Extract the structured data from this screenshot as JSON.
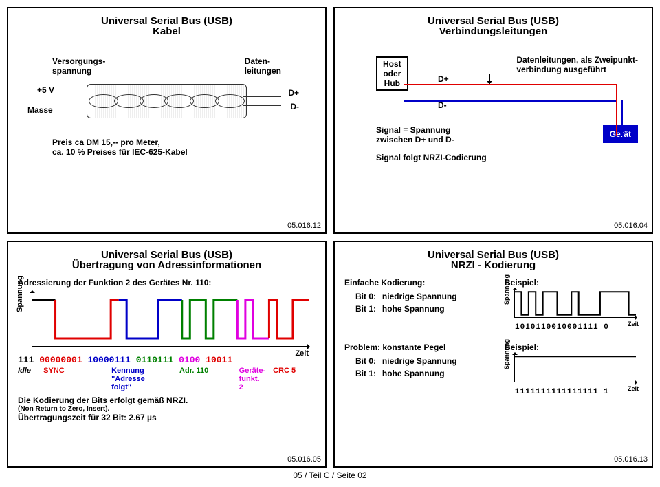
{
  "footer": "05 / Teil C / Seite 02",
  "p1": {
    "title": "Universal Serial Bus (USB)",
    "subtitle": "Kabel",
    "lbl_supply": "Versorgungs-\nspannung",
    "lbl_data": "Daten-\nleitungen",
    "lbl_5v": "+5 V",
    "lbl_mass": "Masse",
    "lbl_dp": "D+",
    "lbl_dm": "D-",
    "price1": "Preis ca DM 15,-- pro Meter,",
    "price2": "ca. 10 % Preises für IEC-625-Kabel",
    "id": "05.016.12"
  },
  "p2": {
    "title": "Universal Serial Bus (USB)",
    "subtitle": "Verbindungsleitungen",
    "host": "Host\noder\nHub",
    "dp": "D+",
    "dm": "D-",
    "datanote": "Datenleitungen, als Zweipunkt-\nverbindung ausgeführt",
    "sig1": "Signal = Spannung\nzwischen D+ und D-",
    "sig2": "Signal folgt NRZI-Codierung",
    "dev": "Gerät",
    "id": "05.016.04",
    "colors": {
      "red": "#e00000",
      "blue": "#0000c8"
    }
  },
  "p3": {
    "title": "Universal Serial Bus (USB)",
    "subtitle": "Übertragung von Adressinformationen",
    "addr": "Adressierung der Funktion 2 des Gerätes Nr. 110:",
    "ylab": "Spannung",
    "xlab": "Zeit",
    "segments": [
      {
        "bits": "111",
        "color": "#000000",
        "label": "Idle",
        "italic": true
      },
      {
        "bits": "00000001",
        "color": "#e00000",
        "label": "SYNC"
      },
      {
        "bits": "10000111",
        "color": "#0000c8",
        "label": "Kennung\n\"Adresse\nfolgt\""
      },
      {
        "bits": "0110111",
        "color": "#008000",
        "label": "Adr. 110"
      },
      {
        "bits": "0100",
        "color": "#e000e0",
        "label": "Geräte-\nfunkt.\n2"
      },
      {
        "bits": "10011",
        "color": "#e00000",
        "label": "CRC 5"
      }
    ],
    "note1": "Die Kodierung der Bits erfolgt gemäß NRZI.",
    "note2": "(Non Return to Zero, Insert).",
    "note3": "Übertragungszeit für 32 Bit: 2.67 µs",
    "id": "05.016.05"
  },
  "p4": {
    "title": "Universal Serial Bus (USB)",
    "subtitle": "NRZI - Kodierung",
    "simple": "Einfache Kodierung:",
    "b0": "Bit 0:",
    "b0v": "niedrige Spannung",
    "b1": "Bit 1:",
    "b1v": "hohe Spannung",
    "ex": "Beispiel:",
    "bits1": "1010110010001111 0",
    "problem": "Problem: konstante Pegel",
    "bits2": "1111111111111111 1",
    "ylab": "Spannung",
    "xlab": "Zeit",
    "id": "05.016.13"
  }
}
